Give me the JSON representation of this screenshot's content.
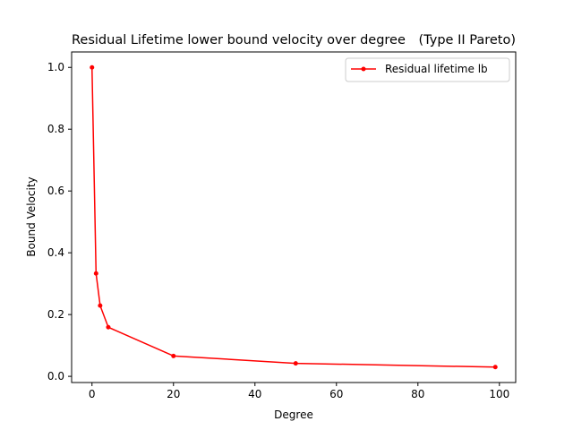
{
  "chart_data": {
    "type": "line",
    "title": "Residual Lifetime lower bound velocity over degree",
    "title_right": "(Type II Pareto)",
    "xlabel": "Degree",
    "ylabel": "Bound Velocity",
    "xlim": [
      -5,
      104
    ],
    "ylim": [
      -0.02,
      1.05
    ],
    "xticks": [
      0,
      20,
      40,
      60,
      80,
      100
    ],
    "yticks": [
      0.0,
      0.2,
      0.4,
      0.6,
      0.8,
      1.0
    ],
    "xtick_labels": [
      "0",
      "20",
      "40",
      "60",
      "80",
      "100"
    ],
    "ytick_labels": [
      "0.0",
      "0.2",
      "0.4",
      "0.6",
      "0.8",
      "1.0"
    ],
    "grid": false,
    "legend_position": "upper right",
    "series": [
      {
        "name": "Residual lifetime lb",
        "color": "#ff0000",
        "marker": "point",
        "x": [
          0,
          1,
          2,
          4,
          20,
          50,
          99
        ],
        "y": [
          1.0,
          0.333,
          0.229,
          0.159,
          0.066,
          0.042,
          0.03
        ]
      }
    ]
  }
}
